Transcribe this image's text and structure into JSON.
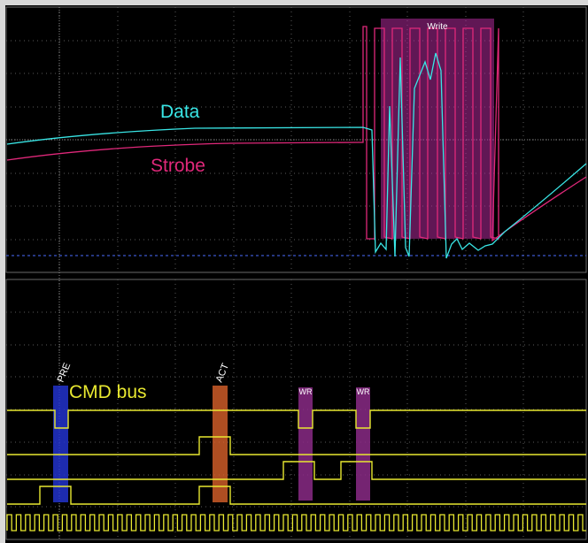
{
  "colors": {
    "background": "#000000",
    "grid": "#5a5a5a",
    "data_trace": "#39e6e6",
    "strobe_trace": "#e0287a",
    "cmd_trace": "#e8e830",
    "write_region": "#b02a9a",
    "pre_marker": "#2233cc",
    "act_marker": "#d9612a",
    "wr_marker": "#8a2a86",
    "threshold": "#4a6cff"
  },
  "top_panel": {
    "data_label": "Data",
    "strobe_label": "Strobe",
    "write_region_label": "Write"
  },
  "bottom_panel": {
    "cmd_label": "CMD bus",
    "markers": [
      {
        "label": "PRE"
      },
      {
        "label": "ACT"
      },
      {
        "label": "WR"
      },
      {
        "label": "WR"
      }
    ]
  }
}
